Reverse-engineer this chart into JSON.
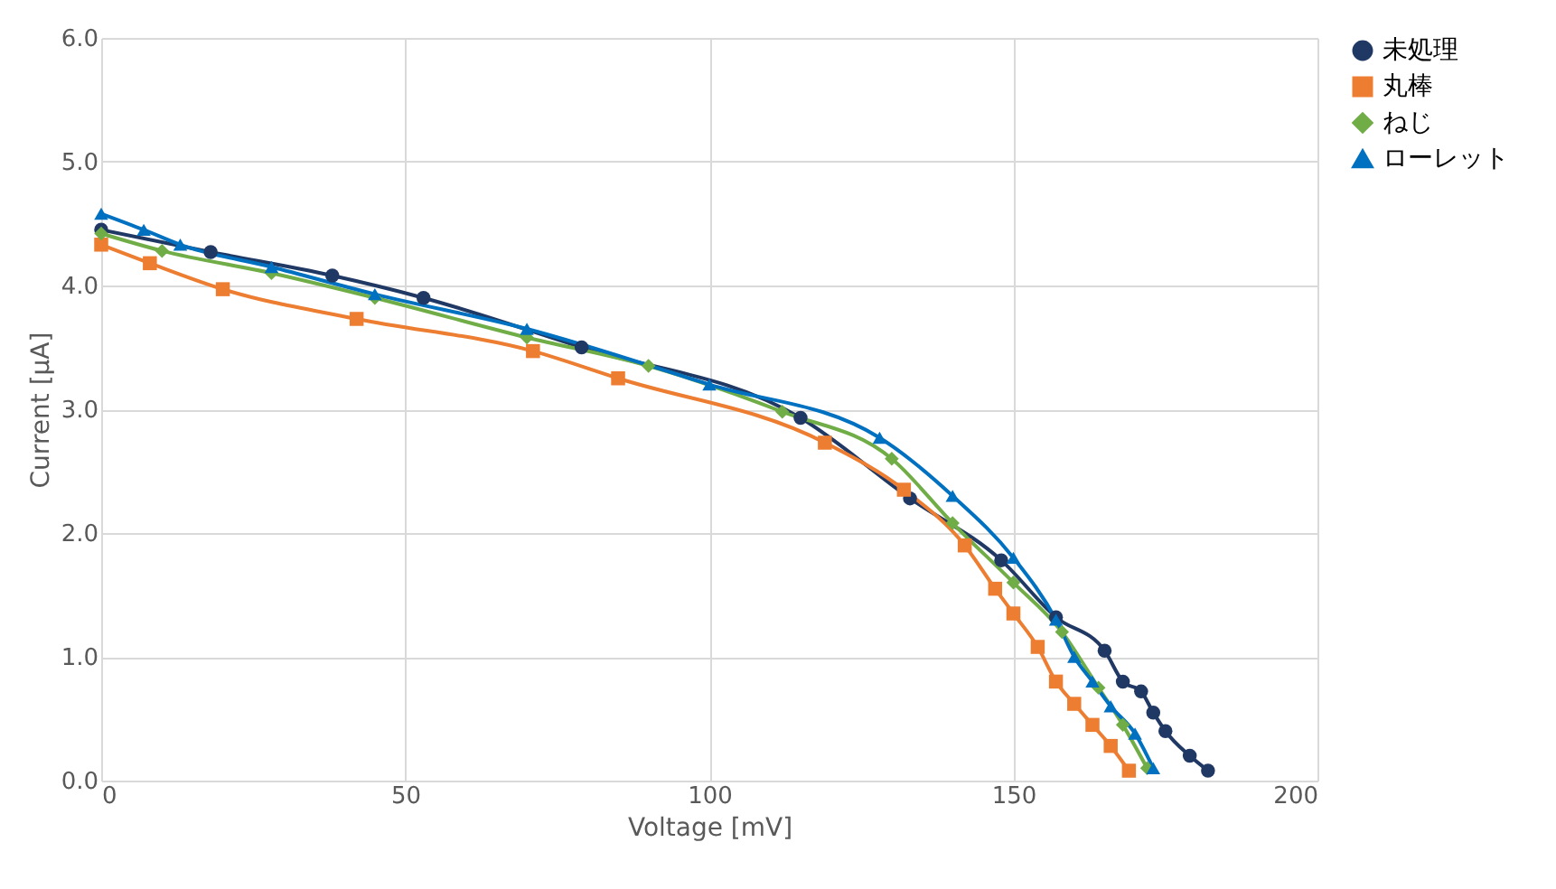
{
  "chart_data": {
    "type": "line",
    "xlabel": "Voltage [mV]",
    "ylabel": "Current [μA]",
    "xlim": [
      0,
      200
    ],
    "xticks": [
      0,
      50,
      100,
      150,
      200
    ],
    "ylim": [
      0,
      6
    ],
    "yticks": [
      {
        "value": 0,
        "label": "0.0"
      },
      {
        "value": 1,
        "label": "1.0"
      },
      {
        "value": 2,
        "label": "2.0"
      },
      {
        "value": 3,
        "label": "3.0"
      },
      {
        "value": 4,
        "label": "4.0"
      },
      {
        "value": 5,
        "label": "5.0"
      },
      {
        "value": 6,
        "label": "6.0"
      }
    ],
    "grid": true,
    "legend": "right",
    "line_style": "solid",
    "series": [
      {
        "name": "未処理",
        "color": "#203864",
        "marker": "circle",
        "x": [
          0,
          18,
          38,
          53,
          79,
          115,
          133,
          148,
          157,
          165,
          168,
          171,
          173,
          175,
          179,
          182
        ],
        "values": [
          4.45,
          4.27,
          4.08,
          3.9,
          3.5,
          2.93,
          2.28,
          1.78,
          1.32,
          1.05,
          0.8,
          0.72,
          0.55,
          0.4,
          0.2,
          0.08
        ]
      },
      {
        "name": "丸棒",
        "color": "#ed7d31",
        "marker": "square",
        "x": [
          0,
          8,
          20,
          42,
          71,
          85,
          119,
          132,
          142,
          147,
          150,
          154,
          157,
          160,
          163,
          166,
          169
        ],
        "values": [
          4.33,
          4.18,
          3.97,
          3.73,
          3.47,
          3.25,
          2.73,
          2.35,
          1.9,
          1.55,
          1.35,
          1.08,
          0.8,
          0.62,
          0.45,
          0.28,
          0.08
        ]
      },
      {
        "name": "ねじ",
        "color": "#70ad47",
        "marker": "diamond",
        "x": [
          0,
          10,
          28,
          45,
          70,
          90,
          112,
          130,
          140,
          150,
          158,
          164,
          168,
          172
        ],
        "values": [
          4.42,
          4.28,
          4.1,
          3.9,
          3.58,
          3.35,
          2.98,
          2.6,
          2.08,
          1.6,
          1.2,
          0.75,
          0.45,
          0.1
        ]
      },
      {
        "name": "ローレット",
        "color": "#0070c0",
        "marker": "triangle",
        "x": [
          0,
          7,
          13,
          28,
          45,
          70,
          100,
          128,
          140,
          150,
          157,
          160,
          163,
          166,
          170,
          173
        ],
        "values": [
          4.58,
          4.45,
          4.33,
          4.15,
          3.93,
          3.65,
          3.2,
          2.77,
          2.3,
          1.8,
          1.3,
          1.0,
          0.8,
          0.6,
          0.38,
          0.1
        ]
      }
    ]
  }
}
